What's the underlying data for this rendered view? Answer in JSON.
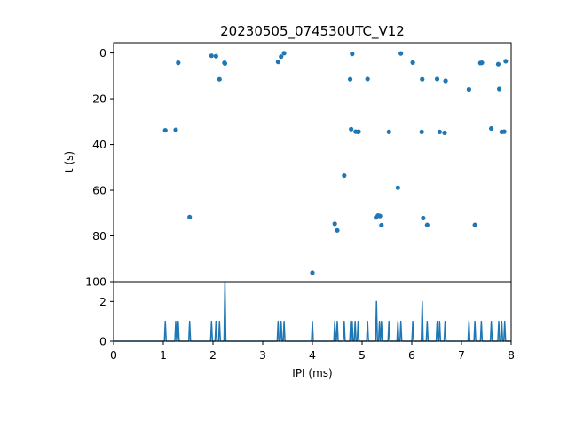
{
  "chart_data": [
    {
      "type": "scatter",
      "title": "20230505_074530UTC_V12",
      "xlabel": "",
      "ylabel": "t (s)",
      "xlim": [
        0,
        8
      ],
      "ylim": [
        100,
        -4.5
      ],
      "y_inverted": true,
      "yticks": [
        0,
        20,
        40,
        60,
        80,
        100
      ],
      "grid": false,
      "color": "#1f77b4",
      "points": [
        [
          1.04,
          33.8
        ],
        [
          1.25,
          33.6
        ],
        [
          1.3,
          4.3
        ],
        [
          1.53,
          71.8
        ],
        [
          1.97,
          1.2
        ],
        [
          2.06,
          1.4
        ],
        [
          2.13,
          11.5
        ],
        [
          2.23,
          4.3
        ],
        [
          2.24,
          4.6
        ],
        [
          3.31,
          3.9
        ],
        [
          3.37,
          1.6
        ],
        [
          3.43,
          0.1
        ],
        [
          4.0,
          96.1
        ],
        [
          4.45,
          74.7
        ],
        [
          4.5,
          77.6
        ],
        [
          4.64,
          53.6
        ],
        [
          4.76,
          11.5
        ],
        [
          4.78,
          33.3
        ],
        [
          4.8,
          0.4
        ],
        [
          4.87,
          34.4
        ],
        [
          4.92,
          34.5
        ],
        [
          4.93,
          34.4
        ],
        [
          5.11,
          11.4
        ],
        [
          5.28,
          71.9
        ],
        [
          5.32,
          71.1
        ],
        [
          5.36,
          71.3
        ],
        [
          5.39,
          75.3
        ],
        [
          5.54,
          34.5
        ],
        [
          5.72,
          58.9
        ],
        [
          5.78,
          0.2
        ],
        [
          6.02,
          4.2
        ],
        [
          6.2,
          34.5
        ],
        [
          6.21,
          11.5
        ],
        [
          6.23,
          72.2
        ],
        [
          6.31,
          75.2
        ],
        [
          6.51,
          11.4
        ],
        [
          6.56,
          34.5
        ],
        [
          6.66,
          34.9
        ],
        [
          6.68,
          12.2
        ],
        [
          7.15,
          15.9
        ],
        [
          7.27,
          75.2
        ],
        [
          7.38,
          4.4
        ],
        [
          7.41,
          4.3
        ],
        [
          7.6,
          33.0
        ],
        [
          7.74,
          4.9
        ],
        [
          7.76,
          15.7
        ],
        [
          7.81,
          34.5
        ],
        [
          7.86,
          34.4
        ],
        [
          7.89,
          3.6
        ]
      ]
    },
    {
      "type": "line",
      "title": "",
      "xlabel": "IPI (ms)",
      "ylabel": "",
      "xlim": [
        0,
        8
      ],
      "ylim": [
        0,
        3
      ],
      "xticks": [
        0,
        1,
        2,
        3,
        4,
        5,
        6,
        7,
        8
      ],
      "yticks": [
        0,
        2
      ],
      "grid": false,
      "color": "#1f77b4",
      "peaks": [
        [
          1.04,
          1
        ],
        [
          1.25,
          1
        ],
        [
          1.3,
          1
        ],
        [
          1.53,
          1
        ],
        [
          1.97,
          1
        ],
        [
          2.06,
          1
        ],
        [
          2.13,
          1
        ],
        [
          2.24,
          3
        ],
        [
          3.31,
          1
        ],
        [
          3.37,
          1
        ],
        [
          3.43,
          1
        ],
        [
          4.0,
          1
        ],
        [
          4.45,
          1
        ],
        [
          4.5,
          1
        ],
        [
          4.64,
          1
        ],
        [
          4.77,
          1
        ],
        [
          4.8,
          1
        ],
        [
          4.86,
          1
        ],
        [
          4.92,
          1
        ],
        [
          5.11,
          1
        ],
        [
          5.29,
          2
        ],
        [
          5.35,
          1
        ],
        [
          5.39,
          1
        ],
        [
          5.54,
          1
        ],
        [
          5.72,
          1
        ],
        [
          5.78,
          1
        ],
        [
          6.02,
          1
        ],
        [
          6.21,
          2
        ],
        [
          6.31,
          1
        ],
        [
          6.51,
          1
        ],
        [
          6.56,
          1
        ],
        [
          6.67,
          1
        ],
        [
          7.15,
          1
        ],
        [
          7.27,
          1
        ],
        [
          7.4,
          1
        ],
        [
          7.6,
          1
        ],
        [
          7.75,
          1
        ],
        [
          7.81,
          1
        ],
        [
          7.87,
          1
        ]
      ]
    }
  ]
}
